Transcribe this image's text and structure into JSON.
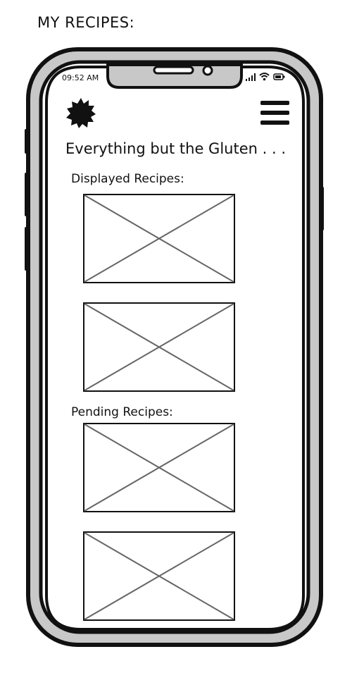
{
  "page": {
    "label": "MY RECIPES:"
  },
  "status_bar": {
    "time": "09:52 AM",
    "icons": [
      "signal-icon",
      "wifi-icon",
      "battery-icon"
    ]
  },
  "header": {
    "logo_icon": "flower-logo-icon",
    "menu_icon": "hamburger-menu-icon",
    "title": "Everything but the Gluten . . ."
  },
  "sections": {
    "displayed": {
      "heading": "Displayed Recipes:",
      "items": [
        "image-placeholder",
        "image-placeholder"
      ]
    },
    "pending": {
      "heading": "Pending Recipes:",
      "items": [
        "image-placeholder",
        "image-placeholder"
      ]
    }
  },
  "colors": {
    "device_frame": "#c8c8c8",
    "outline": "#111111",
    "placeholder_stroke": "#666666"
  }
}
